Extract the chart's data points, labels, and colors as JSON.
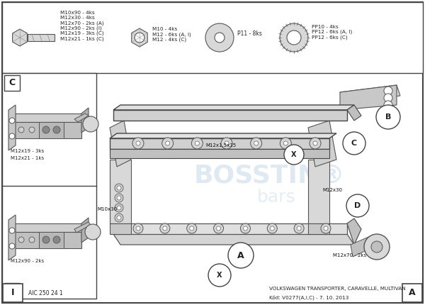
{
  "bg_color": "#ffffff",
  "border_color": "#444444",
  "text_color": "#222222",
  "gray1": "#d8d8d8",
  "gray2": "#c0c0c0",
  "gray3": "#a0a0a0",
  "parts_text_bolt": "M10x90 - 4ks\nM12x30 - 4ks\nM12x70 - 2ks (A)\nM12x90 - 2ks (I)\nM12x19 - 3ks (C)\nM12x21 - 1ks (C)",
  "parts_text_nut": "M10 - 4ks\nM12 - 6ks (A, I)\nM12 - 4ks (C)",
  "parts_text_p11": "P11 - 8ks",
  "parts_text_pp": "PP10 - 4ks\nPP12 - 6ks (A, I)\nPP12 - 6ks (C)",
  "footer_left": "AIC 250 24 1",
  "footer_right1": "VOLKSWAGEN TRANSPORTER, CARAVELLE, MULTIVAN",
  "footer_right2": "Kód: V0277(A,I,C) - 7. 10. 2013",
  "watermark1": "BOSSTIN®",
  "watermark2": "bars"
}
